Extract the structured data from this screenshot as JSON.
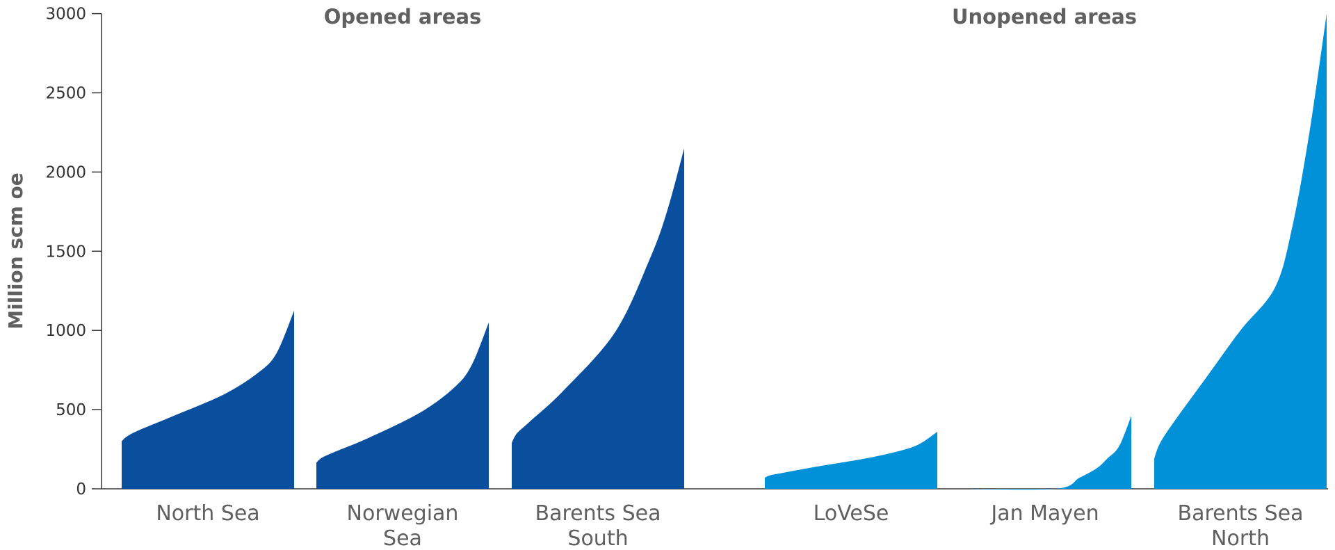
{
  "chart_data": {
    "type": "area",
    "ylabel": "Million scm oe",
    "ylim": [
      0,
      3000
    ],
    "yticks": [
      "0",
      "500",
      "1000",
      "1500",
      "2000",
      "2500",
      "3000"
    ],
    "groups": [
      {
        "label": "Opened areas",
        "color": "#0a4f9e"
      },
      {
        "label": "Unopened areas",
        "color": "#0091d9"
      }
    ],
    "series": [
      {
        "name": "North Sea",
        "lines": [
          "North Sea"
        ],
        "group": 0,
        "points": [
          [
            0,
            300
          ],
          [
            0.03,
            330
          ],
          [
            0.1,
            370
          ],
          [
            0.3,
            460
          ],
          [
            0.6,
            600
          ],
          [
            0.8,
            740
          ],
          [
            0.9,
            860
          ],
          [
            1,
            1125
          ]
        ]
      },
      {
        "name": "Norwegian Sea",
        "lines": [
          "Norwegian",
          "Sea"
        ],
        "group": 0,
        "points": [
          [
            0,
            165
          ],
          [
            0.03,
            195
          ],
          [
            0.1,
            230
          ],
          [
            0.3,
            320
          ],
          [
            0.6,
            480
          ],
          [
            0.8,
            640
          ],
          [
            0.9,
            780
          ],
          [
            1,
            1050
          ]
        ]
      },
      {
        "name": "Barents Sea South",
        "lines": [
          "Barents Sea",
          "South"
        ],
        "group": 0,
        "points": [
          [
            0,
            290
          ],
          [
            0.03,
            350
          ],
          [
            0.1,
            420
          ],
          [
            0.3,
            620
          ],
          [
            0.6,
            990
          ],
          [
            0.8,
            1450
          ],
          [
            0.9,
            1750
          ],
          [
            1,
            2150
          ]
        ]
      },
      {
        "name": "LoVeSe",
        "lines": [
          "LoVeSe"
        ],
        "group": 1,
        "points": [
          [
            0,
            70
          ],
          [
            0.03,
            85
          ],
          [
            0.1,
            100
          ],
          [
            0.3,
            140
          ],
          [
            0.6,
            195
          ],
          [
            0.8,
            245
          ],
          [
            0.9,
            285
          ],
          [
            1,
            360
          ]
        ]
      },
      {
        "name": "Jan Mayen",
        "lines": [
          "Jan Mayen"
        ],
        "group": 1,
        "points": [
          [
            0,
            0
          ],
          [
            0.56,
            0
          ],
          [
            0.7,
            70
          ],
          [
            0.8,
            130
          ],
          [
            0.86,
            190
          ],
          [
            0.93,
            270
          ],
          [
            1,
            460
          ]
        ]
      },
      {
        "name": "Barents Sea North",
        "lines": [
          "Barents Sea",
          "North"
        ],
        "group": 1,
        "points": [
          [
            0,
            190
          ],
          [
            0.03,
            280
          ],
          [
            0.1,
            400
          ],
          [
            0.3,
            700
          ],
          [
            0.5,
            1000
          ],
          [
            0.7,
            1270
          ],
          [
            0.8,
            1650
          ],
          [
            0.9,
            2250
          ],
          [
            1,
            3000
          ]
        ]
      }
    ]
  }
}
